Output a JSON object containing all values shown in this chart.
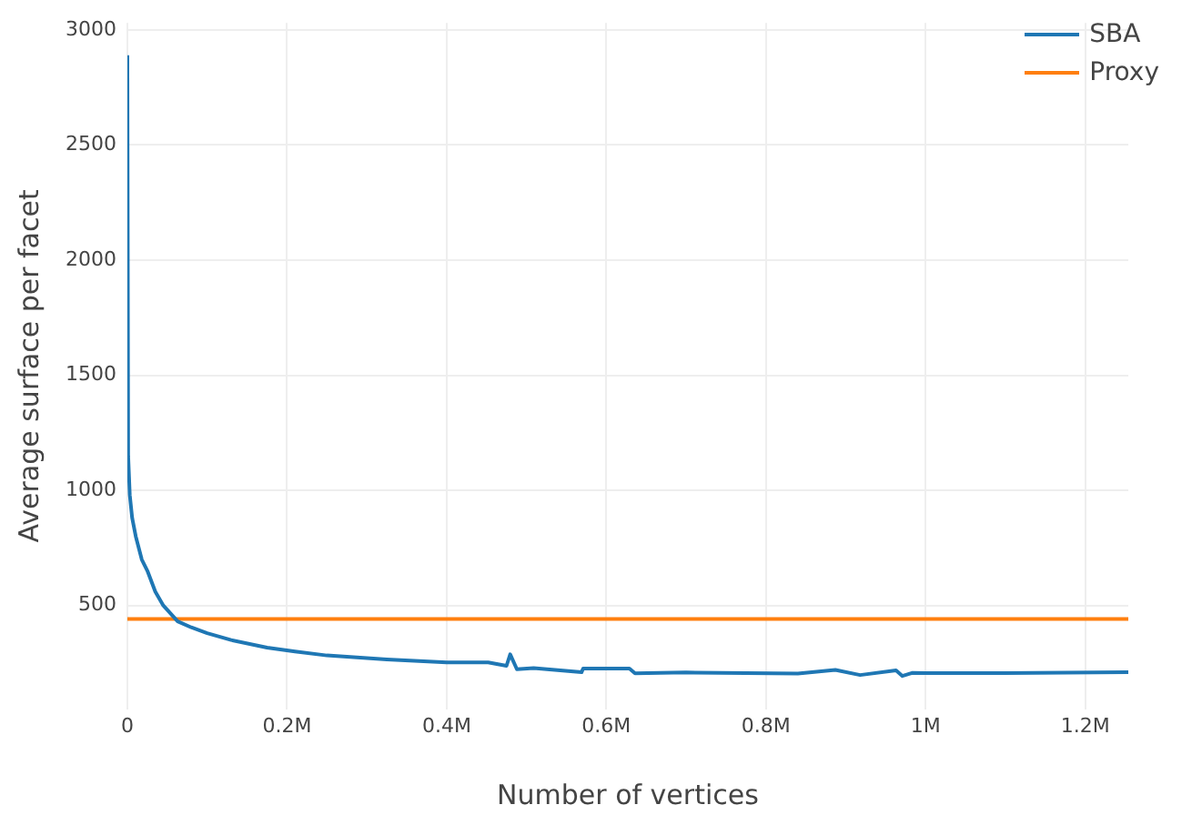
{
  "chart_data": {
    "type": "line",
    "xlabel": "Number of vertices",
    "ylabel": "Average surface per facet",
    "xlim": [
      0,
      1254000
    ],
    "ylim": [
      50,
      3030
    ],
    "xticks": [
      0,
      {
        "value": 200000,
        "label": "0.2M"
      },
      {
        "value": 400000,
        "label": "0.4M"
      },
      {
        "value": 600000,
        "label": "0.6M"
      },
      {
        "value": 800000,
        "label": "0.8M"
      },
      {
        "value": 1000000,
        "label": "1M"
      },
      {
        "value": 1200000,
        "label": "1.2M"
      }
    ],
    "yticks": [
      500,
      1000,
      1500,
      2000,
      2500,
      3000
    ],
    "grid": true,
    "legend": "top right",
    "marker": "none",
    "line_style": "solid",
    "series": [
      {
        "name": "SBA",
        "color": "#1f77b4",
        "x": [
          0,
          1000,
          3000,
          6000,
          10500,
          18000,
          25500,
          35000,
          45000,
          63000,
          80000,
          100000,
          130000,
          175000,
          210000,
          250000,
          325000,
          400000,
          452000,
          475000,
          479600,
          488000,
          509000,
          569000,
          571000,
          629000,
          636000,
          700000,
          840000,
          887000,
          918000,
          963000,
          971000,
          983000,
          1100000,
          1254000
        ],
        "values": [
          2890,
          1150,
          980,
          880,
          800,
          700,
          647,
          560,
          500,
          431,
          405,
          380,
          350,
          317,
          300,
          283,
          266,
          253,
          253,
          238,
          288,
          223,
          228,
          210,
          226,
          226,
          205,
          209,
          204,
          220,
          198,
          218,
          194,
          207,
          206,
          210
        ]
      },
      {
        "name": "Proxy",
        "color": "#ff7f0e",
        "x": [
          0,
          1254000
        ],
        "values": [
          441,
          441
        ]
      }
    ]
  }
}
